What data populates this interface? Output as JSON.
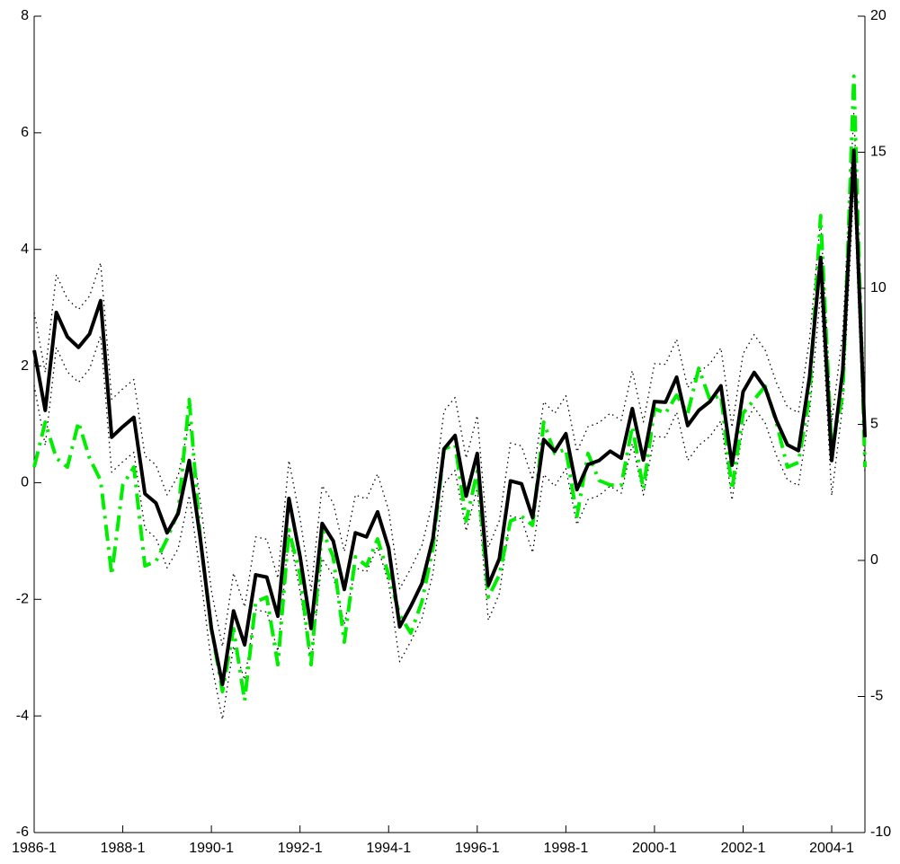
{
  "chart_data": {
    "type": "line",
    "categories": [
      "1986-1",
      null,
      null,
      null,
      null,
      null,
      null,
      null,
      "1988-1",
      null,
      null,
      null,
      null,
      null,
      null,
      null,
      "1990-1",
      null,
      null,
      null,
      null,
      null,
      null,
      null,
      "1992-1",
      null,
      null,
      null,
      null,
      null,
      null,
      null,
      "1994-1",
      null,
      null,
      null,
      null,
      null,
      null,
      null,
      "1996-1",
      null,
      null,
      null,
      null,
      null,
      null,
      null,
      "1998-1",
      null,
      null,
      null,
      null,
      null,
      null,
      null,
      "2000-1",
      null,
      null,
      null,
      null,
      null,
      null,
      null,
      "2002-1",
      null,
      null,
      null,
      null,
      null,
      null,
      null,
      "2004-1",
      null,
      null,
      null
    ],
    "series": [
      {
        "color": "#000000",
        "style": "dotted",
        "values": [
          2.92,
          1.89,
          3.57,
          3.15,
          2.97,
          3.2,
          3.77,
          1.43,
          1.61,
          1.77,
          0.46,
          0.3,
          -0.21,
          0.12,
          1.03,
          -0.31,
          -1.85,
          -2.81,
          -1.55,
          -2.13,
          -0.93,
          -0.97,
          -1.64,
          0.38,
          -0.61,
          -1.85,
          -0.05,
          -0.35,
          -1.18,
          -0.21,
          -0.28,
          0.15,
          -0.47,
          -1.82,
          -1.47,
          -1.08,
          -0.31,
          1.23,
          1.46,
          0.42,
          1.15,
          -1.11,
          -0.65,
          0.68,
          0.63,
          0.05,
          1.39,
          1.19,
          1.49,
          0.53,
          0.96,
          1.03,
          1.19,
          1.07,
          1.92,
          1.04,
          2.04,
          2.03,
          2.46,
          1.63,
          1.89,
          2.04,
          2.31,
          0.95,
          2.21,
          2.54,
          2.27,
          1.72,
          1.3,
          1.2,
          2.46,
          4.51,
          1.03,
          2.58,
          6.35,
          1.43
        ]
      },
      {
        "color": "#000000",
        "style": "dotted",
        "values": [
          1.67,
          0.64,
          2.32,
          1.9,
          1.72,
          1.95,
          2.52,
          0.18,
          0.36,
          0.52,
          -0.79,
          -0.95,
          -1.46,
          -1.13,
          -0.22,
          -1.56,
          -3.1,
          -4.06,
          -2.8,
          -3.38,
          -2.18,
          -2.22,
          -2.89,
          -0.87,
          -1.86,
          -3.1,
          -1.3,
          -1.6,
          -2.43,
          -1.46,
          -1.53,
          -1.1,
          -1.72,
          -3.07,
          -2.72,
          -2.33,
          -1.56,
          -0.02,
          0.21,
          -0.83,
          -0.1,
          -2.36,
          -1.9,
          -0.57,
          -0.62,
          -1.2,
          0.14,
          -0.06,
          0.24,
          -0.72,
          -0.29,
          -0.22,
          -0.06,
          -0.18,
          0.67,
          -0.21,
          0.79,
          0.78,
          1.21,
          0.38,
          0.64,
          0.79,
          1.06,
          -0.3,
          0.96,
          1.29,
          1.02,
          0.47,
          0.05,
          -0.05,
          1.21,
          3.26,
          -0.22,
          1.33,
          5.1,
          0.18
        ]
      },
      {
        "color": "#00ee00",
        "style": "dashdot",
        "axis": "y2",
        "values": [
          3.43,
          5.08,
          3.76,
          3.43,
          5.08,
          3.76,
          2.94,
          -0.53,
          2.77,
          3.43,
          -0.2,
          -0.03,
          0.79,
          1.78,
          5.91,
          0.79,
          -2.51,
          -4.82,
          -2.51,
          -5.15,
          -1.52,
          -1.35,
          -3.83,
          1.12,
          -0.53,
          -3.83,
          1.12,
          0.13,
          -3.0,
          0.13,
          -0.2,
          0.79,
          -0.53,
          -2.01,
          -2.67,
          -1.52,
          0.46,
          4.09,
          4.26,
          1.45,
          3.27,
          -1.35,
          -0.53,
          1.45,
          1.62,
          1.29,
          5.08,
          3.93,
          4.09,
          1.62,
          3.93,
          2.94,
          2.77,
          2.77,
          4.92,
          2.61,
          5.58,
          5.41,
          6.07,
          5.41,
          7.06,
          5.91,
          6.07,
          2.61,
          5.41,
          5.91,
          6.4,
          5.08,
          3.43,
          3.6,
          6.07,
          12.67,
          4.09,
          6.07,
          17.79,
          3.43
        ]
      },
      {
        "color": "#000000",
        "style": "solid",
        "values": [
          2.27,
          1.24,
          2.92,
          2.5,
          2.32,
          2.55,
          3.12,
          0.78,
          0.96,
          1.12,
          -0.19,
          -0.35,
          -0.86,
          -0.53,
          0.38,
          -0.96,
          -2.5,
          -3.46,
          -2.2,
          -2.78,
          -1.58,
          -1.62,
          -2.29,
          -0.27,
          -1.26,
          -2.5,
          -0.7,
          -1.0,
          -1.83,
          -0.86,
          -0.93,
          -0.5,
          -1.12,
          -2.47,
          -2.12,
          -1.73,
          -0.96,
          0.58,
          0.81,
          -0.23,
          0.5,
          -1.76,
          -1.3,
          0.03,
          -0.02,
          -0.6,
          0.74,
          0.54,
          0.84,
          -0.12,
          0.31,
          0.38,
          0.54,
          0.42,
          1.27,
          0.39,
          1.39,
          1.38,
          1.81,
          0.98,
          1.24,
          1.39,
          1.66,
          0.3,
          1.56,
          1.89,
          1.62,
          1.07,
          0.65,
          0.55,
          1.81,
          3.86,
          0.38,
          1.93,
          5.7,
          0.78
        ]
      }
    ],
    "ylim": [
      -6,
      8
    ],
    "yticks": [
      -6,
      -4,
      -2,
      0,
      2,
      4,
      6,
      8
    ],
    "y2lim": [
      -10,
      20
    ],
    "y2ticks": [
      -10,
      -5,
      0,
      5,
      10,
      15,
      20
    ]
  }
}
